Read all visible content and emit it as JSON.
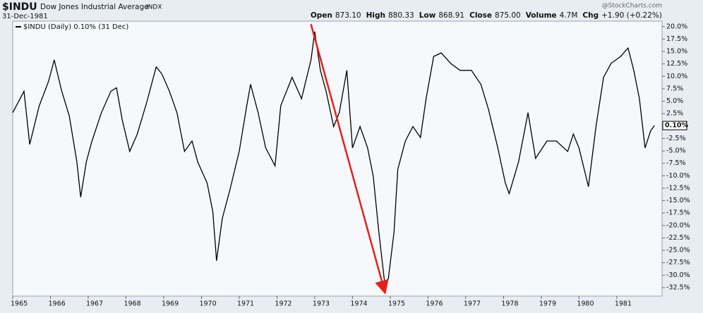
{
  "chart_data": {
    "type": "line",
    "symbol": "$INDU",
    "name": "Dow Jones Industrial Average",
    "exchange": "INDX",
    "date": "31-Dec-1981",
    "credit": "@StockCharts.com",
    "stats": [
      {
        "label": "Open",
        "value": "873.10"
      },
      {
        "label": "High",
        "value": "880.33"
      },
      {
        "label": "Low",
        "value": "868.91"
      },
      {
        "label": "Close",
        "value": "875.00"
      },
      {
        "label": "Volume",
        "value": "4.7M"
      },
      {
        "label": "Chg",
        "value": "+1.90 (+0.22%)"
      }
    ],
    "x": [
      1965.0,
      1965.3,
      1965.45,
      1965.7,
      1965.95,
      1966.1,
      1966.3,
      1966.5,
      1966.7,
      1966.8,
      1966.95,
      1967.1,
      1967.35,
      1967.6,
      1967.75,
      1967.9,
      1968.1,
      1968.3,
      1968.55,
      1968.8,
      1968.95,
      1969.15,
      1969.35,
      1969.55,
      1969.75,
      1969.9,
      1970.15,
      1970.3,
      1970.4,
      1970.55,
      1970.75,
      1971.0,
      1971.2,
      1971.3,
      1971.5,
      1971.7,
      1971.95,
      1972.1,
      1972.4,
      1972.65,
      1972.9,
      1973.0,
      1973.15,
      1973.3,
      1973.5,
      1973.65,
      1973.85,
      1974.0,
      1974.2,
      1974.4,
      1974.55,
      1974.7,
      1974.85,
      1974.95,
      1975.1,
      1975.2,
      1975.4,
      1975.6,
      1975.8,
      1975.95,
      1976.15,
      1976.35,
      1976.6,
      1976.85,
      1977.15,
      1977.4,
      1977.6,
      1977.85,
      1978.05,
      1978.15,
      1978.4,
      1978.65,
      1978.85,
      1979.15,
      1979.4,
      1979.7,
      1979.85,
      1980.0,
      1980.25,
      1980.45,
      1980.65,
      1980.85,
      1981.1,
      1981.3,
      1981.45,
      1981.6,
      1981.75,
      1981.9,
      1982.0
    ],
    "series": [
      {
        "name": "$INDU (Daily) 0.10% (31 Dec)",
        "color": "#000000",
        "values": [
          2.7,
          7,
          -3.7,
          4,
          9,
          13.3,
          7,
          2,
          -7.2,
          -14.3,
          -7.2,
          -3,
          2.7,
          7,
          7.7,
          1.3,
          -5.1,
          -1.6,
          4.8,
          11.9,
          10.5,
          7,
          2.7,
          -5.1,
          -3,
          -7.2,
          -11.5,
          -17.2,
          -27.1,
          -18.6,
          -12.9,
          -5.1,
          4.1,
          8.4,
          2.7,
          -4.4,
          -8,
          4.1,
          9.8,
          5.5,
          13.3,
          19,
          11.2,
          7,
          -0.1,
          2.7,
          11.2,
          -4.4,
          -0.1,
          -4.4,
          -10.1,
          -21.4,
          -31.4,
          -30.7,
          -21.4,
          -8.7,
          -3,
          -0.1,
          -2.3,
          5.5,
          14,
          14.7,
          12.6,
          11.2,
          11.2,
          8.4,
          3.4,
          -4.4,
          -11.5,
          -13.6,
          -7.2,
          2.7,
          -6.5,
          -3,
          -3,
          -5.1,
          -1.6,
          -4.4,
          -12.2,
          -0.1,
          9.8,
          12.6,
          14,
          15.7,
          11.2,
          5.5,
          -4.4,
          -0.9,
          0.1
        ]
      }
    ],
    "end_tag": {
      "value": 0.1,
      "label": "0.10%"
    },
    "arrow": {
      "x": [
        1972.9,
        1974.85
      ],
      "y": [
        20.5,
        -33.2
      ],
      "color": "#e3211c"
    },
    "xlim": [
      1965,
      1982.2
    ],
    "xticks": [
      1965,
      1966,
      1967,
      1968,
      1969,
      1970,
      1971,
      1972,
      1973,
      1974,
      1975,
      1976,
      1977,
      1978,
      1979,
      1980,
      1981
    ],
    "ylim": [
      -34.2,
      21.1
    ],
    "yticks": [
      {
        "value": -32.5,
        "label": "-32.5%"
      },
      {
        "value": -30,
        "label": "-30.0%"
      },
      {
        "value": -27.5,
        "label": "-27.5%"
      },
      {
        "value": -25,
        "label": "-25.0%"
      },
      {
        "value": -22.5,
        "label": "-22.5%"
      },
      {
        "value": -20,
        "label": "-20.0%"
      },
      {
        "value": -17.5,
        "label": "-17.5%"
      },
      {
        "value": -15,
        "label": "-15.0%"
      },
      {
        "value": -12.5,
        "label": "-12.5%"
      },
      {
        "value": -10,
        "label": "-10.0%"
      },
      {
        "value": -7.5,
        "label": "-7.5%"
      },
      {
        "value": -5,
        "label": "-5.0%"
      },
      {
        "value": -2.5,
        "label": "-2.5%"
      },
      {
        "value": 2.5,
        "label": "2.5%"
      },
      {
        "value": 5,
        "label": "5.0%"
      },
      {
        "value": 7.5,
        "label": "7.5%"
      },
      {
        "value": 10,
        "label": "10.0%"
      },
      {
        "value": 12.5,
        "label": "12.5%"
      },
      {
        "value": 15,
        "label": "15.0%"
      },
      {
        "value": 17.5,
        "label": "17.5%"
      },
      {
        "value": 20,
        "label": "20.0%"
      }
    ],
    "grid": false
  }
}
